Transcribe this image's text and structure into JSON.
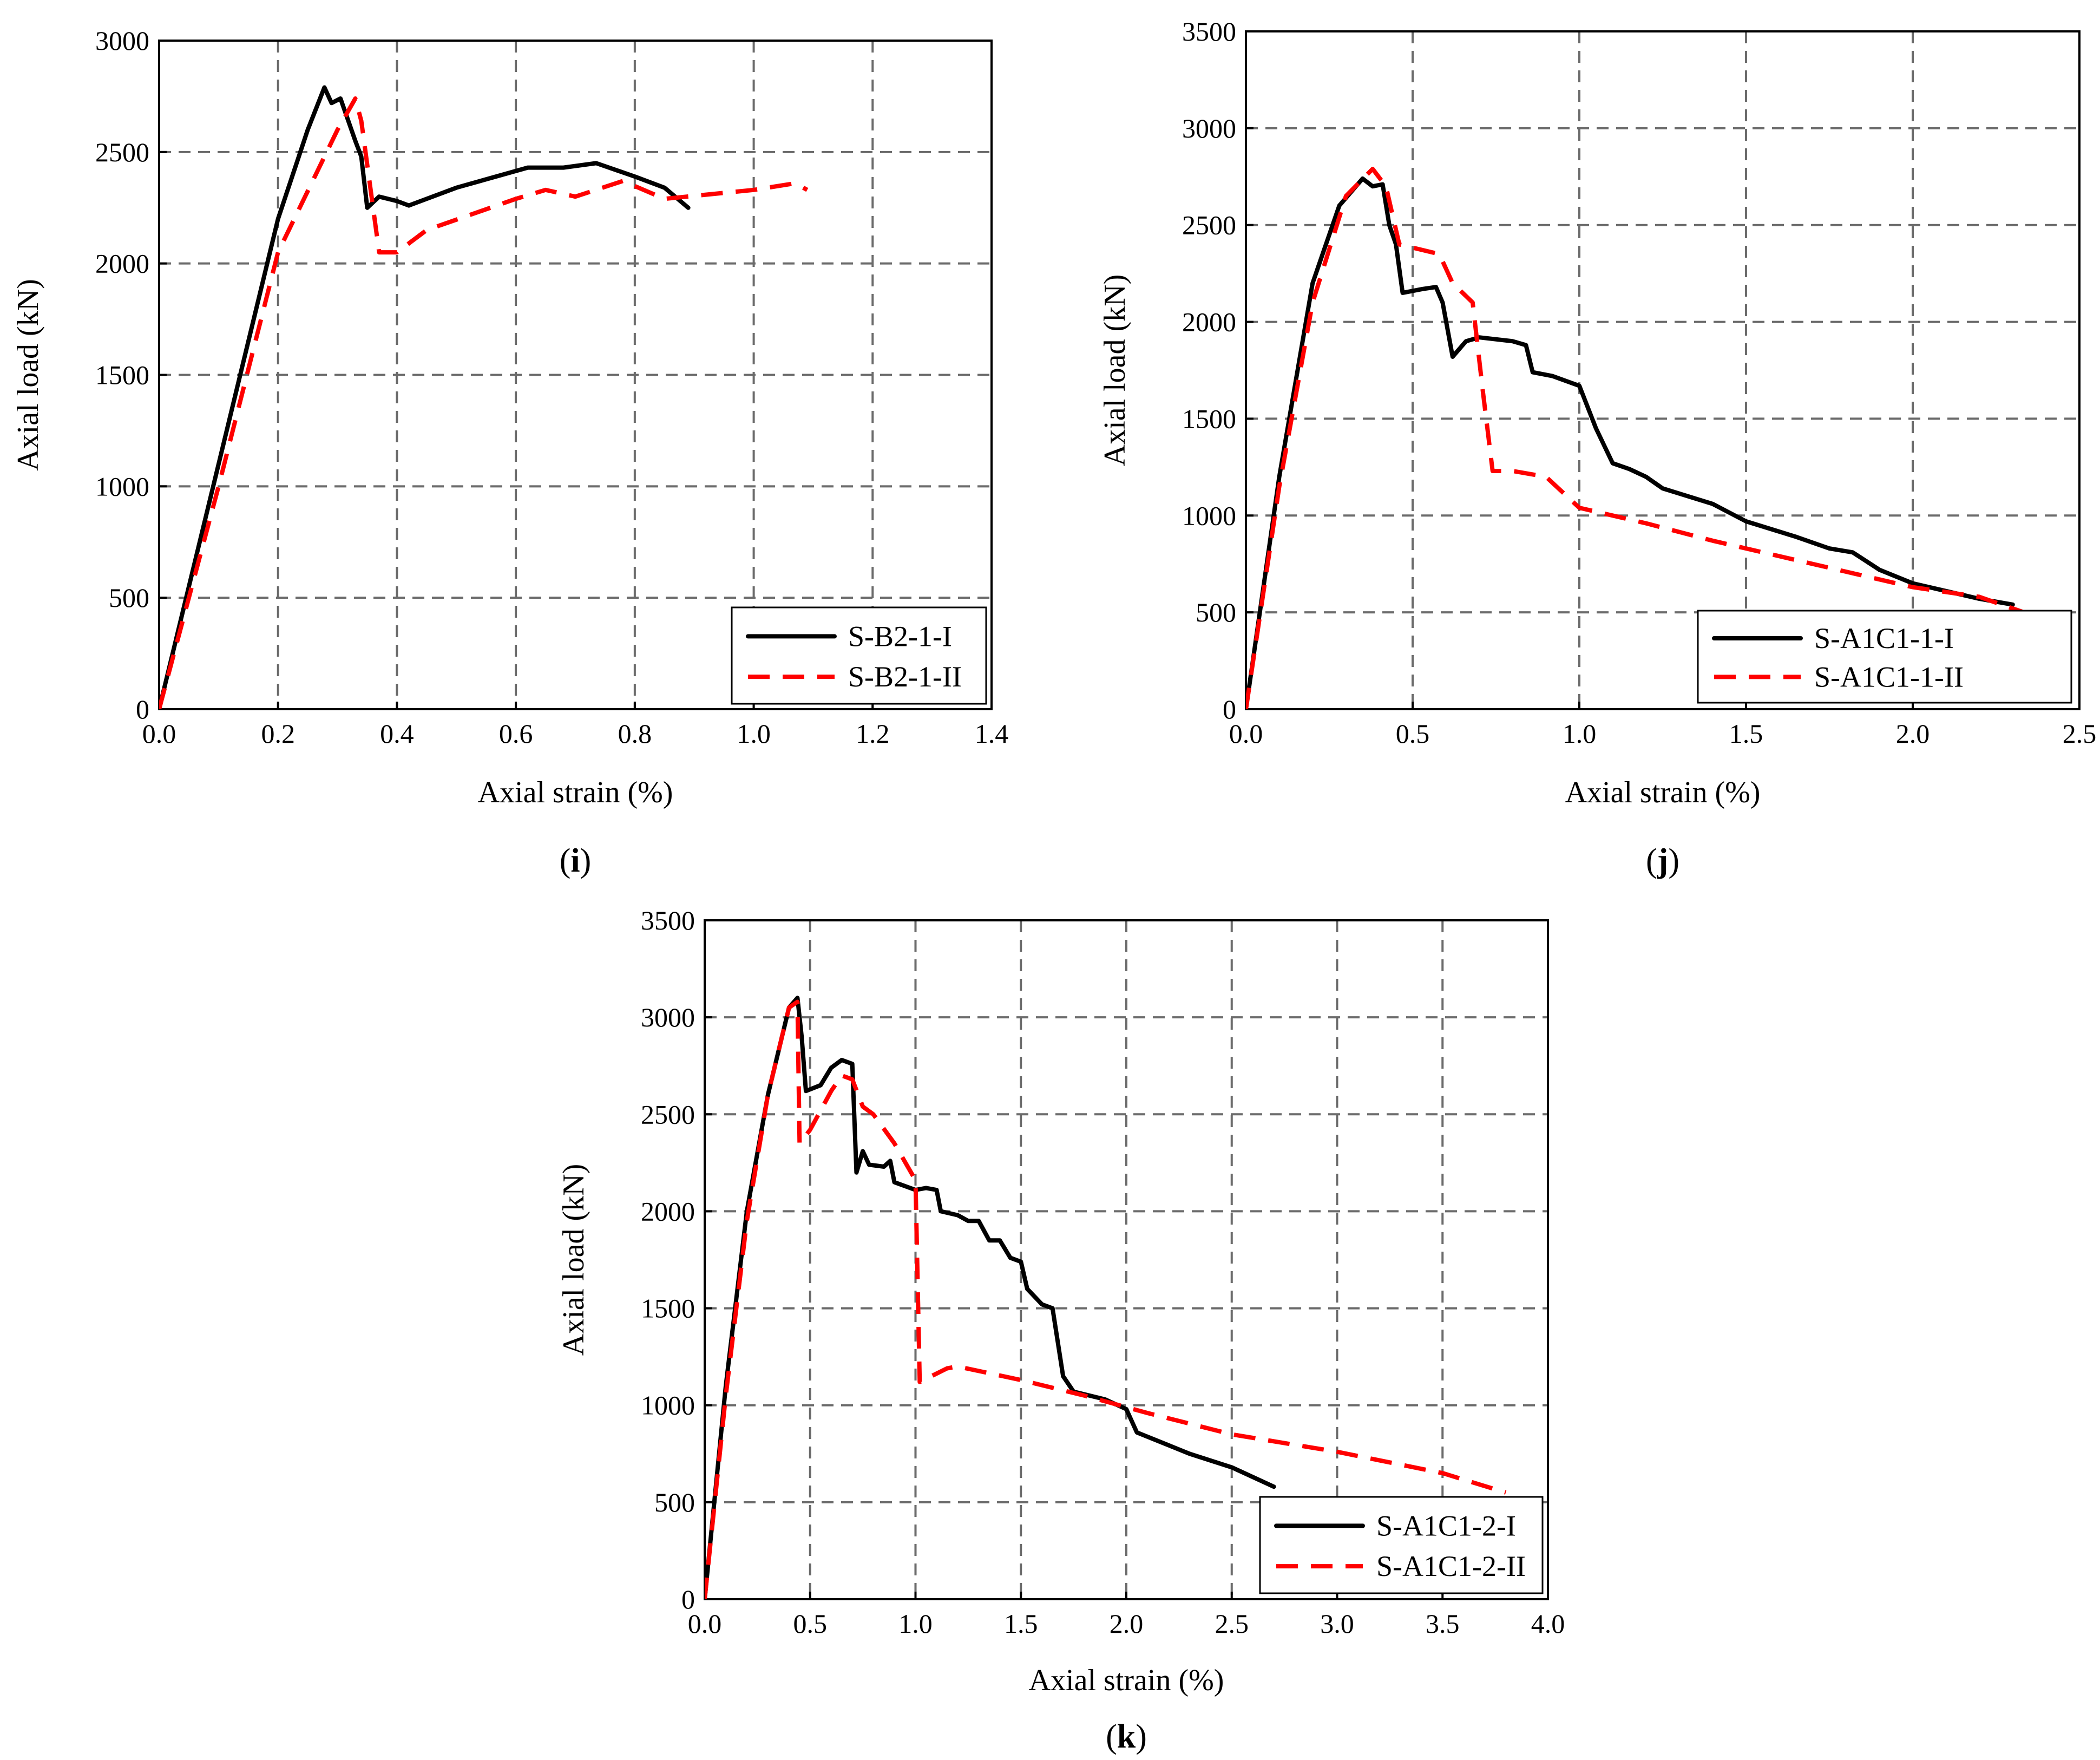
{
  "chart_data": [
    {
      "id": "i",
      "type": "line",
      "panel_label": "i",
      "xlabel": "Axial strain (%)",
      "ylabel": "Axial load (kN)",
      "xlim": [
        0,
        1.4
      ],
      "ylim": [
        0,
        3000
      ],
      "xticks": [
        "0.0",
        "0.2",
        "0.4",
        "0.6",
        "0.8",
        "1.0",
        "1.2",
        "1.4"
      ],
      "yticks": [
        "0",
        "500",
        "1000",
        "1500",
        "2000",
        "2500",
        "3000"
      ],
      "legend_position": "bottom-right",
      "grid": true,
      "series": [
        {
          "name": "S-B2-1-I",
          "style": "solid",
          "color": "#000000",
          "points": [
            [
              0,
              0
            ],
            [
              0.1,
              1100
            ],
            [
              0.2,
              2200
            ],
            [
              0.25,
              2600
            ],
            [
              0.278,
              2790
            ],
            [
              0.29,
              2720
            ],
            [
              0.305,
              2740
            ],
            [
              0.33,
              2550
            ],
            [
              0.34,
              2480
            ],
            [
              0.35,
              2250
            ],
            [
              0.37,
              2300
            ],
            [
              0.4,
              2280
            ],
            [
              0.42,
              2260
            ],
            [
              0.5,
              2340
            ],
            [
              0.62,
              2430
            ],
            [
              0.68,
              2430
            ],
            [
              0.735,
              2450
            ],
            [
              0.8,
              2390
            ],
            [
              0.85,
              2340
            ],
            [
              0.89,
              2250
            ]
          ]
        },
        {
          "name": "S-B2-1-II",
          "style": "dashed",
          "color": "#ff0000",
          "points": [
            [
              0,
              0
            ],
            [
              0.1,
              1000
            ],
            [
              0.2,
              2050
            ],
            [
              0.3,
              2600
            ],
            [
              0.33,
              2740
            ],
            [
              0.34,
              2640
            ],
            [
              0.37,
              2050
            ],
            [
              0.4,
              2050
            ],
            [
              0.45,
              2150
            ],
            [
              0.6,
              2290
            ],
            [
              0.65,
              2330
            ],
            [
              0.7,
              2300
            ],
            [
              0.78,
              2370
            ],
            [
              0.85,
              2290
            ],
            [
              1.0,
              2330
            ],
            [
              1.07,
              2360
            ],
            [
              1.09,
              2330
            ]
          ]
        }
      ]
    },
    {
      "id": "j",
      "type": "line",
      "panel_label": "j",
      "xlabel": "Axial strain (%)",
      "ylabel": "Axial load (kN)",
      "xlim": [
        0,
        2.5
      ],
      "ylim": [
        0,
        3500
      ],
      "xticks": [
        "0.0",
        "0.5",
        "1.0",
        "1.5",
        "2.0",
        "2.5"
      ],
      "yticks": [
        "0",
        "500",
        "1000",
        "1500",
        "2000",
        "2500",
        "3000",
        "3500"
      ],
      "legend_position": "bottom-right",
      "grid": true,
      "series": [
        {
          "name": "S-A1C1-1-I",
          "style": "solid",
          "color": "#000000",
          "points": [
            [
              0,
              0
            ],
            [
              0.1,
              1200
            ],
            [
              0.2,
              2200
            ],
            [
              0.28,
              2600
            ],
            [
              0.35,
              2740
            ],
            [
              0.38,
              2700
            ],
            [
              0.41,
              2710
            ],
            [
              0.43,
              2500
            ],
            [
              0.45,
              2400
            ],
            [
              0.47,
              2150
            ],
            [
              0.53,
              2170
            ],
            [
              0.57,
              2180
            ],
            [
              0.59,
              2100
            ],
            [
              0.62,
              1820
            ],
            [
              0.66,
              1900
            ],
            [
              0.7,
              1920
            ],
            [
              0.8,
              1900
            ],
            [
              0.84,
              1880
            ],
            [
              0.86,
              1740
            ],
            [
              0.92,
              1720
            ],
            [
              1.0,
              1670
            ],
            [
              1.05,
              1450
            ],
            [
              1.1,
              1270
            ],
            [
              1.15,
              1240
            ],
            [
              1.2,
              1200
            ],
            [
              1.25,
              1140
            ],
            [
              1.4,
              1060
            ],
            [
              1.5,
              970
            ],
            [
              1.65,
              890
            ],
            [
              1.75,
              830
            ],
            [
              1.82,
              810
            ],
            [
              1.9,
              720
            ],
            [
              2.0,
              650
            ],
            [
              2.1,
              610
            ],
            [
              2.2,
              570
            ],
            [
              2.3,
              540
            ]
          ]
        },
        {
          "name": "S-A1C1-1-II",
          "style": "dashed",
          "color": "#ff0000",
          "points": [
            [
              0,
              0
            ],
            [
              0.1,
              1150
            ],
            [
              0.2,
              2100
            ],
            [
              0.3,
              2650
            ],
            [
              0.38,
              2790
            ],
            [
              0.42,
              2700
            ],
            [
              0.46,
              2400
            ],
            [
              0.58,
              2350
            ],
            [
              0.62,
              2200
            ],
            [
              0.68,
              2100
            ],
            [
              0.71,
              1650
            ],
            [
              0.74,
              1230
            ],
            [
              0.8,
              1230
            ],
            [
              0.9,
              1200
            ],
            [
              1.0,
              1040
            ],
            [
              1.1,
              1000
            ],
            [
              1.2,
              960
            ],
            [
              1.4,
              870
            ],
            [
              1.6,
              790
            ],
            [
              1.8,
              710
            ],
            [
              2.0,
              630
            ],
            [
              2.2,
              580
            ],
            [
              2.35,
              490
            ]
          ]
        }
      ]
    },
    {
      "id": "k",
      "type": "line",
      "panel_label": "k",
      "xlabel": "Axial strain (%)",
      "ylabel": "Axial load (kN)",
      "xlim": [
        0,
        4.0
      ],
      "ylim": [
        0,
        3500
      ],
      "xticks": [
        "0.0",
        "0.5",
        "1.0",
        "1.5",
        "2.0",
        "2.5",
        "3.0",
        "3.5",
        "4.0"
      ],
      "yticks": [
        "0",
        "500",
        "1000",
        "1500",
        "2000",
        "2500",
        "3000",
        "3500"
      ],
      "legend_position": "bottom-right",
      "grid": true,
      "series": [
        {
          "name": "S-A1C1-2-I",
          "style": "solid",
          "color": "#000000",
          "points": [
            [
              0,
              0
            ],
            [
              0.1,
              1100
            ],
            [
              0.2,
              2000
            ],
            [
              0.3,
              2600
            ],
            [
              0.4,
              3050
            ],
            [
              0.44,
              3100
            ],
            [
              0.46,
              2900
            ],
            [
              0.48,
              2620
            ],
            [
              0.55,
              2650
            ],
            [
              0.6,
              2740
            ],
            [
              0.65,
              2780
            ],
            [
              0.7,
              2760
            ],
            [
              0.72,
              2200
            ],
            [
              0.75,
              2310
            ],
            [
              0.78,
              2240
            ],
            [
              0.85,
              2230
            ],
            [
              0.88,
              2260
            ],
            [
              0.9,
              2150
            ],
            [
              1.0,
              2110
            ],
            [
              1.05,
              2120
            ],
            [
              1.1,
              2110
            ],
            [
              1.12,
              2000
            ],
            [
              1.2,
              1980
            ],
            [
              1.25,
              1950
            ],
            [
              1.3,
              1950
            ],
            [
              1.35,
              1850
            ],
            [
              1.4,
              1850
            ],
            [
              1.45,
              1760
            ],
            [
              1.5,
              1740
            ],
            [
              1.53,
              1600
            ],
            [
              1.6,
              1520
            ],
            [
              1.65,
              1500
            ],
            [
              1.7,
              1150
            ],
            [
              1.75,
              1070
            ],
            [
              1.9,
              1030
            ],
            [
              2.0,
              980
            ],
            [
              2.05,
              860
            ],
            [
              2.3,
              750
            ],
            [
              2.5,
              680
            ],
            [
              2.7,
              580
            ]
          ]
        },
        {
          "name": "S-A1C1-2-II",
          "style": "dashed",
          "color": "#ff0000",
          "points": [
            [
              0,
              0
            ],
            [
              0.1,
              1050
            ],
            [
              0.2,
              1950
            ],
            [
              0.3,
              2600
            ],
            [
              0.4,
              3050
            ],
            [
              0.44,
              3080
            ],
            [
              0.45,
              2350
            ],
            [
              0.5,
              2420
            ],
            [
              0.6,
              2620
            ],
            [
              0.65,
              2700
            ],
            [
              0.7,
              2680
            ],
            [
              0.75,
              2540
            ],
            [
              0.8,
              2500
            ],
            [
              0.9,
              2350
            ],
            [
              1.0,
              2160
            ],
            [
              1.02,
              1120
            ],
            [
              1.15,
              1190
            ],
            [
              1.2,
              1200
            ],
            [
              1.5,
              1130
            ],
            [
              1.8,
              1050
            ],
            [
              2.1,
              960
            ],
            [
              2.5,
              850
            ],
            [
              3.0,
              760
            ],
            [
              3.5,
              650
            ],
            [
              3.8,
              550
            ]
          ]
        }
      ]
    }
  ]
}
